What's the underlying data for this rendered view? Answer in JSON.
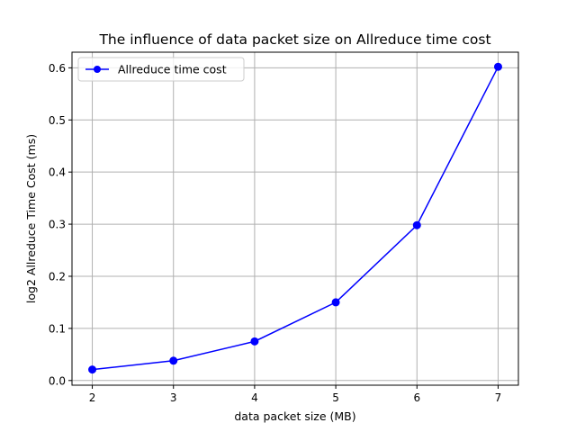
{
  "chart_data": {
    "type": "line",
    "title": "The influence of data packet size on Allreduce time cost",
    "xlabel": "data packet size (MB)",
    "ylabel": "log2 Allreduce Time Cost (ms)",
    "xlim": [
      1.75,
      7.25
    ],
    "ylim": [
      -0.009,
      0.63
    ],
    "xticks": [
      2,
      3,
      4,
      5,
      6,
      7
    ],
    "yticks": [
      0.0,
      0.1,
      0.2,
      0.3,
      0.4,
      0.5,
      0.6
    ],
    "ytick_labels": [
      "0.0",
      "0.1",
      "0.2",
      "0.3",
      "0.4",
      "0.5",
      "0.6"
    ],
    "grid": true,
    "legend_position": "upper-left",
    "series": [
      {
        "name": "Allreduce time cost",
        "color": "#0000ff",
        "marker": "circle",
        "x": [
          2,
          3,
          4,
          5,
          6,
          7
        ],
        "y": [
          0.021,
          0.038,
          0.075,
          0.15,
          0.298,
          0.602
        ]
      }
    ]
  }
}
